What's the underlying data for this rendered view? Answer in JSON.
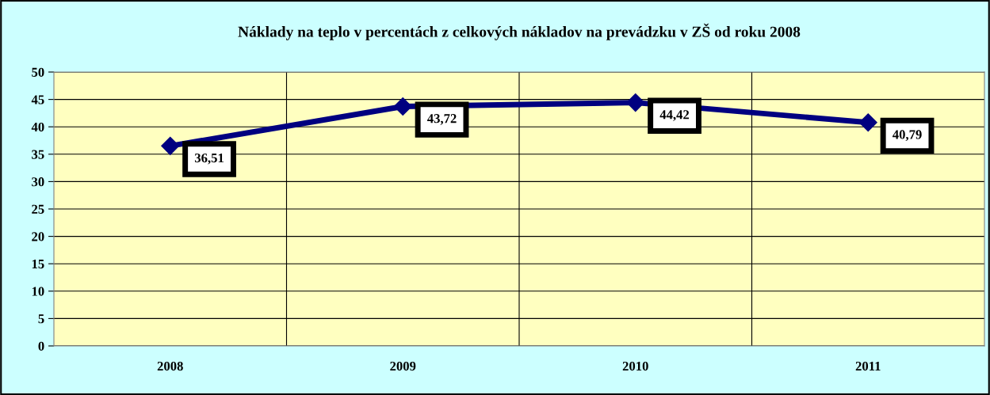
{
  "chart_data": {
    "type": "line",
    "title": "Náklady na teplo v percentách z celkových nákladov na prevádzku v ZŠ od roku 2008",
    "categories": [
      "2008",
      "2009",
      "2010",
      "2011"
    ],
    "series": [
      {
        "color": "#000080",
        "values": [
          36.51,
          43.72,
          44.42,
          40.79
        ],
        "value_labels": [
          "36,51",
          "43,72",
          "44,42",
          "40,79"
        ]
      }
    ],
    "ylim": [
      0,
      50
    ],
    "yticks": [
      0,
      5,
      10,
      15,
      20,
      25,
      30,
      35,
      40,
      45,
      50
    ],
    "grid": true,
    "marker": "diamond",
    "line_style": "solid",
    "legend": false
  }
}
